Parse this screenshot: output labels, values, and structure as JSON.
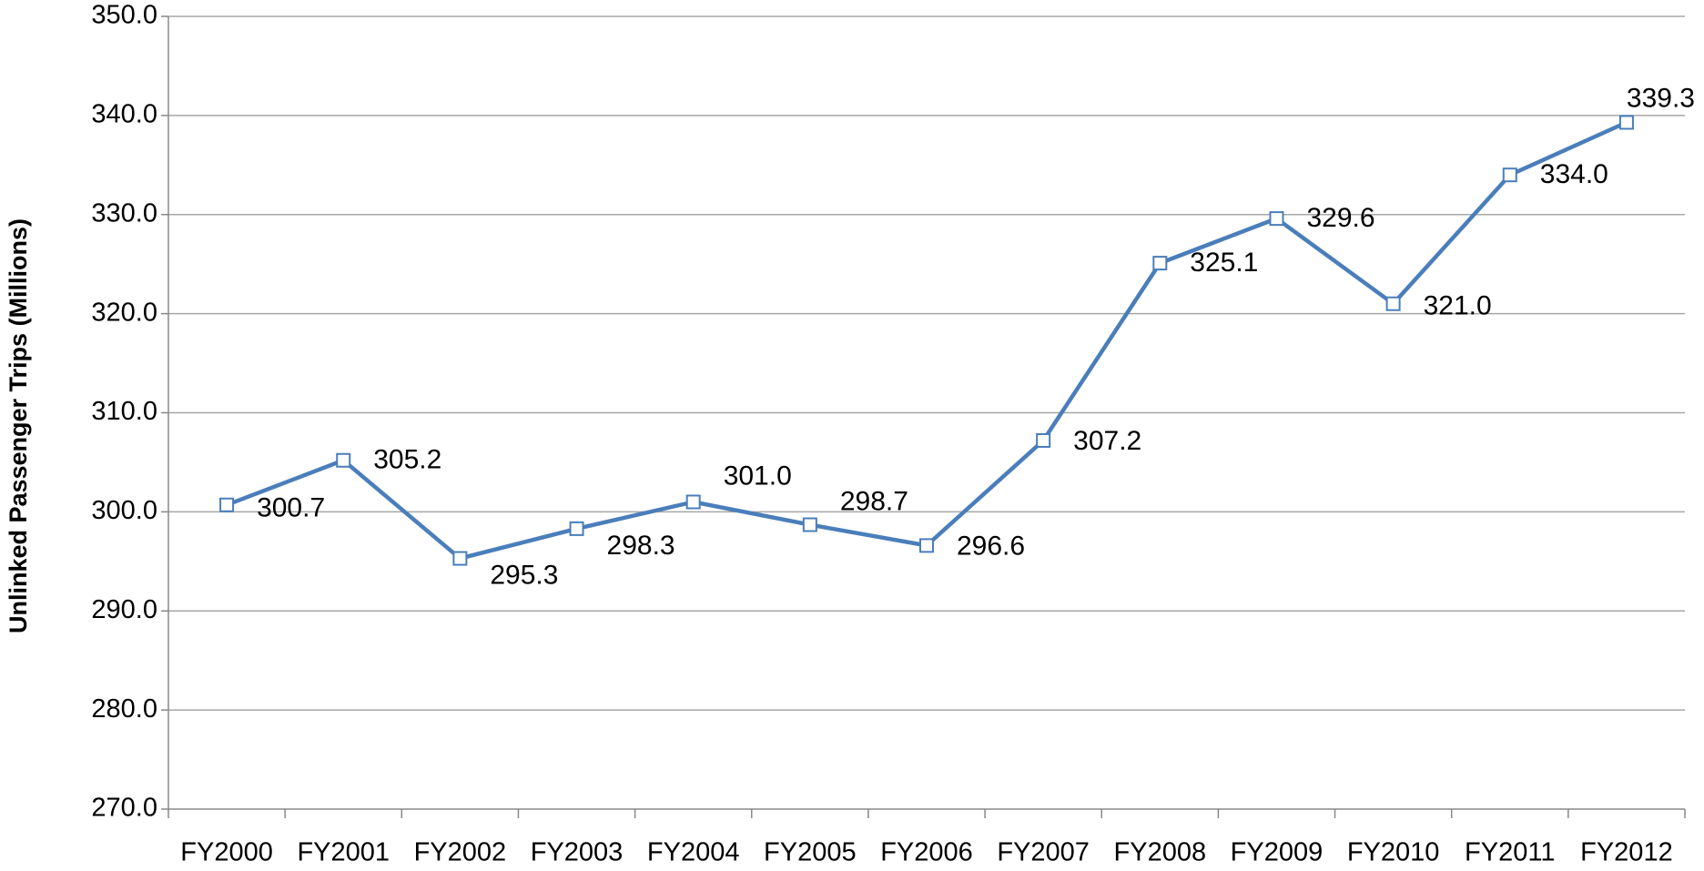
{
  "chart_data": {
    "type": "line",
    "y_label": "Unlinked Passenger Trips (Millions)",
    "categories": [
      "FY2000",
      "FY2001",
      "FY2002",
      "FY2003",
      "FY2004",
      "FY2005",
      "FY2006",
      "FY2007",
      "FY2008",
      "FY2009",
      "FY2010",
      "FY2011",
      "FY2012"
    ],
    "series": [
      {
        "color": "#4a7ebb",
        "values": [
          300.7,
          305.2,
          295.3,
          298.3,
          301.0,
          298.7,
          296.6,
          307.2,
          325.1,
          329.6,
          321.0,
          334.0,
          339.3
        ],
        "value_labels": [
          "300.7",
          "305.2",
          "295.3",
          "298.3",
          "301.0",
          "298.7",
          "296.6",
          "307.2",
          "325.1",
          "329.6",
          "321.0",
          "334.0",
          "339.3"
        ]
      }
    ],
    "ylim": [
      270,
      350
    ],
    "yticks": [
      {
        "value": 270,
        "label": "270.0"
      },
      {
        "value": 280,
        "label": "280.0"
      },
      {
        "value": 290,
        "label": "290.0"
      },
      {
        "value": 300,
        "label": "300.0"
      },
      {
        "value": 310,
        "label": "310.0"
      },
      {
        "value": 320,
        "label": "320.0"
      },
      {
        "value": 330,
        "label": "330.0"
      },
      {
        "value": 340,
        "label": "340.0"
      },
      {
        "value": 350,
        "label": "350.0"
      }
    ],
    "grid": true
  }
}
